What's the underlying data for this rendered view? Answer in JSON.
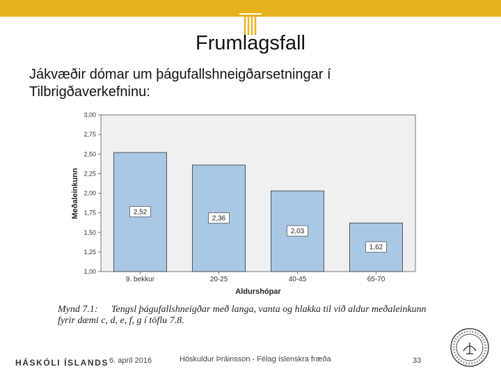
{
  "slide": {
    "title": "Frumlagsfall",
    "subtitle": "Jákvæðir dómar um þágufallshneigðarsetningar í Tilbrigðaverkefninu:",
    "caption_lead": "Mynd 7.1:",
    "caption_text": "Tengsl þágufallshneigðar með langa, vanta og hlakka til við aldur meðaleinkunn fyrir dæmi c, d, e, f, g í töflu 7.8.",
    "footer_logo": "HÁSKÓLI ÍSLANDS",
    "footer_date": "6. apríl 2016",
    "footer_author": "Höskuldur Þráinsson - Félag íslenskra fræða",
    "page_number": "33",
    "accent_color": "#e8b21e"
  },
  "chart_data": {
    "type": "bar",
    "categories": [
      "9. bekkur",
      "20-25",
      "40-45",
      "65-70"
    ],
    "values": [
      2.52,
      2.36,
      2.03,
      1.62
    ],
    "value_labels": [
      "2,52",
      "2,36",
      "2,03",
      "1,62"
    ],
    "xlabel": "Aldurshópar",
    "ylabel": "Meðaleinkunn",
    "ylim": [
      1.0,
      3.0
    ],
    "y_ticks": [
      1.0,
      1.25,
      1.5,
      1.75,
      2.0,
      2.25,
      2.5,
      2.75,
      3.0
    ],
    "y_tick_labels": [
      "1,00",
      "1,25",
      "1,50",
      "1,75",
      "2,00",
      "2,25",
      "2,50",
      "2,75",
      "3,00"
    ],
    "bar_color": "#a9c8e6",
    "plot_background": "#f0f0f0",
    "grid": false,
    "legend": "none"
  }
}
